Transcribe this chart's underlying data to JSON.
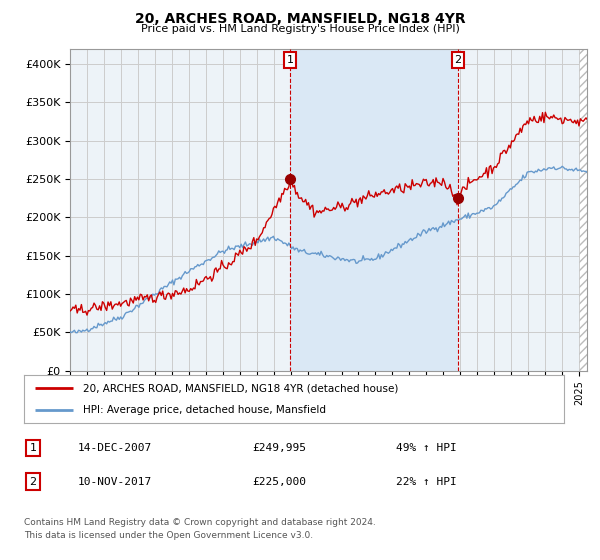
{
  "title": "20, ARCHES ROAD, MANSFIELD, NG18 4YR",
  "subtitle": "Price paid vs. HM Land Registry's House Price Index (HPI)",
  "xlim_start": 1995.0,
  "xlim_end": 2025.5,
  "ylim": [
    0,
    420000
  ],
  "yticks": [
    0,
    50000,
    100000,
    150000,
    200000,
    250000,
    300000,
    350000,
    400000
  ],
  "ytick_labels": [
    "£0",
    "£50K",
    "£100K",
    "£150K",
    "£200K",
    "£250K",
    "£300K",
    "£350K",
    "£400K"
  ],
  "sale1_date": 2007.958,
  "sale1_price": 249995,
  "sale2_date": 2017.875,
  "sale2_price": 225000,
  "line_color_price": "#cc0000",
  "line_color_hpi": "#6699cc",
  "grid_color": "#cccccc",
  "bg_color": "#edf3f8",
  "shade_color": "#dae8f5",
  "legend_price_label": "20, ARCHES ROAD, MANSFIELD, NG18 4YR (detached house)",
  "legend_hpi_label": "HPI: Average price, detached house, Mansfield",
  "footer_line1": "Contains HM Land Registry data © Crown copyright and database right 2024.",
  "footer_line2": "This data is licensed under the Open Government Licence v3.0.",
  "sale1_info_date": "14-DEC-2007",
  "sale1_info_price": "£249,995",
  "sale1_info_hpi": "49% ↑ HPI",
  "sale2_info_date": "10-NOV-2017",
  "sale2_info_price": "£225,000",
  "sale2_info_hpi": "22% ↑ HPI"
}
